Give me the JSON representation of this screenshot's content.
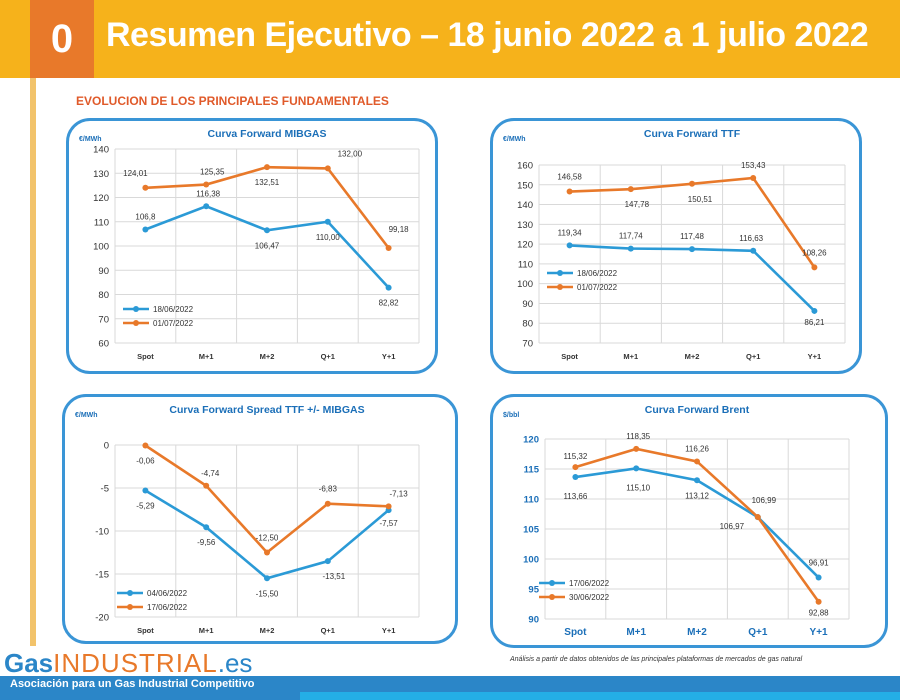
{
  "header": {
    "number": "0",
    "title": "Resumen Ejecutivo – 18 junio 2022 a 1 julio 2022"
  },
  "subtitle": "EVOLUCION DE LOS PRINCIPALES FUNDAMENTALES",
  "footer": {
    "logo_gas": "Gas",
    "logo_industrial": "INDUSTRIAL",
    "logo_es": ".es",
    "slogan": "Asociación para un Gas Industrial Competitivo",
    "source": "Análisis a partir de datos obtenidos de las principales plataformas de mercados de gas natural"
  },
  "colors": {
    "blue": "#2b9ad6",
    "orange": "#e8792a",
    "border": "#3a95d6",
    "header": "#f6b21b"
  },
  "chart_data": [
    {
      "id": "mibgas",
      "type": "line",
      "title": "Curva Forward MIBGAS",
      "ylabel": "€/MWh",
      "categories": [
        "Spot",
        "M+1",
        "M+2",
        "Q+1",
        "Y+1"
      ],
      "ylim": [
        60,
        140
      ],
      "yticks": [
        "60",
        "70",
        "80",
        "90",
        "100",
        "110",
        "120",
        "130",
        "140"
      ],
      "grid": true,
      "legend": "bottom-left",
      "series": [
        {
          "name": "18/06/2022",
          "color": "#2b9ad6",
          "values": [
            106.8,
            116.38,
            106.47,
            110.0,
            82.82
          ],
          "labels": [
            "106,8",
            "116,38",
            "106,47",
            "110,00",
            "82,82"
          ]
        },
        {
          "name": "01/07/2022",
          "color": "#e8792a",
          "values": [
            124.01,
            125.35,
            132.51,
            132.0,
            99.18
          ],
          "labels": [
            "124,01",
            "125,35",
            "132,51",
            "132,00",
            "99,18"
          ]
        }
      ]
    },
    {
      "id": "ttf",
      "type": "line",
      "title": "Curva Forward TTF",
      "ylabel": "€/MWh",
      "categories": [
        "Spot",
        "M+1",
        "M+2",
        "Q+1",
        "Y+1"
      ],
      "ylim": [
        70,
        160
      ],
      "yticks": [
        "70",
        "80",
        "90",
        "100",
        "110",
        "120",
        "130",
        "140",
        "150",
        "160"
      ],
      "grid": true,
      "legend": "bottom-left",
      "series": [
        {
          "name": "18/06/2022",
          "color": "#2b9ad6",
          "values": [
            119.34,
            117.74,
            117.48,
            116.63,
            86.21
          ],
          "labels": [
            "119,34",
            "117,74",
            "117,48",
            "116,63",
            "86,21"
          ]
        },
        {
          "name": "01/07/2022",
          "color": "#e8792a",
          "values": [
            146.58,
            147.78,
            150.51,
            153.43,
            108.26
          ],
          "labels": [
            "146,58",
            "147,78",
            "150,51",
            "153,43",
            "108,26"
          ]
        }
      ]
    },
    {
      "id": "spread",
      "type": "line",
      "title": "Curva Forward Spread TTF +/- MIBGAS",
      "ylabel": "€/MWh",
      "categories": [
        "Spot",
        "M+1",
        "M+2",
        "Q+1",
        "Y+1"
      ],
      "ylim": [
        -20,
        0
      ],
      "yticks": [
        "-20",
        "-15",
        "-10",
        "-5",
        "0"
      ],
      "grid": true,
      "legend": "bottom-left",
      "series": [
        {
          "name": "04/06/2022",
          "color": "#2b9ad6",
          "values": [
            -5.29,
            -9.56,
            -15.5,
            -13.51,
            -7.57
          ],
          "labels": [
            "-5,29",
            "-9,56",
            "-15,50",
            "-13,51",
            "-7,57"
          ]
        },
        {
          "name": "17/06/2022",
          "color": "#e8792a",
          "values": [
            -0.06,
            -4.74,
            -12.5,
            -6.83,
            -7.13
          ],
          "labels": [
            "-0,06",
            "-4,74",
            "-12,50",
            "-6,83",
            "-7,13"
          ]
        }
      ]
    },
    {
      "id": "brent",
      "type": "line",
      "title": "Curva Forward Brent",
      "ylabel": "$/bbl",
      "categories": [
        "Spot",
        "M+1",
        "M+2",
        "Q+1",
        "Y+1"
      ],
      "ylim": [
        90,
        120
      ],
      "yticks": [
        "90",
        "95",
        "100",
        "105",
        "110",
        "115",
        "120"
      ],
      "grid": true,
      "legend": "bottom-left",
      "series": [
        {
          "name": "17/06/2022",
          "color": "#2b9ad6",
          "values": [
            113.66,
            115.1,
            113.12,
            106.97,
            96.91
          ],
          "labels": [
            "113,66",
            "115,10",
            "113,12",
            "106,97",
            "96,91"
          ]
        },
        {
          "name": "30/06/2022",
          "color": "#e8792a",
          "values": [
            115.32,
            118.35,
            116.26,
            106.99,
            92.88
          ],
          "labels": [
            "115,32",
            "118,35",
            "116,26",
            "106,99",
            "92,88"
          ]
        }
      ]
    }
  ]
}
